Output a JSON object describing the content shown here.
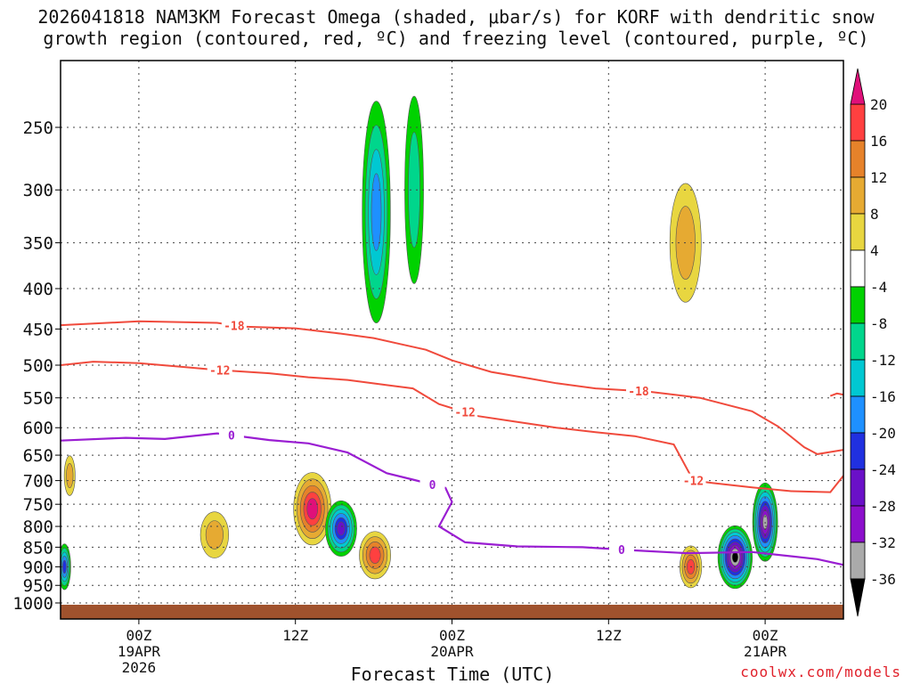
{
  "chart_data": {
    "type": "heatmap",
    "title_line1": "2026041818 NAM3KM Forecast Omega (shaded, μbar/s) for KORF with dendritic snow",
    "title_line2": "growth region (contoured, red, ºC) and freezing level (contoured, purple, ºC)",
    "xlabel": "Forecast Time (UTC)",
    "credit": "coolwx.com/models",
    "y_axis": {
      "unit": "hPa",
      "scale": "log-pressure",
      "range": [
        1000,
        215
      ],
      "ticks": [
        250,
        300,
        350,
        400,
        450,
        500,
        550,
        600,
        650,
        700,
        750,
        800,
        850,
        900,
        950,
        1000
      ]
    },
    "x_axis": {
      "unit": "forecast hours from 2026041818",
      "range": [
        0,
        60
      ],
      "ticks": [
        {
          "hour": 6,
          "label": "00Z",
          "sub1": "19APR",
          "sub2": "2026"
        },
        {
          "hour": 18,
          "label": "12Z",
          "sub1": "",
          "sub2": ""
        },
        {
          "hour": 30,
          "label": "00Z",
          "sub1": "20APR",
          "sub2": ""
        },
        {
          "hour": 42,
          "label": "12Z",
          "sub1": "",
          "sub2": ""
        },
        {
          "hour": 54,
          "label": "00Z",
          "sub1": "21APR",
          "sub2": ""
        }
      ]
    },
    "colorbar": {
      "levels": [
        -36,
        -32,
        -28,
        -24,
        -20,
        -16,
        -12,
        -8,
        -4,
        4,
        8,
        12,
        16,
        20
      ],
      "label_levels": [
        20,
        16,
        12,
        8,
        4,
        -4,
        -8,
        -12,
        -16,
        -20,
        -24,
        -28,
        -32,
        -36
      ],
      "colors": [
        "#000000",
        "#aaaaaa",
        "#8c0fcc",
        "#6a10c8",
        "#2030e0",
        "#1e90ff",
        "#00c8d2",
        "#00d68c",
        "#00d200",
        "#ffffff",
        "#e8d640",
        "#e6aa32",
        "#e6822a",
        "#ff4040",
        "#e0107a"
      ],
      "extend": "both"
    },
    "dgz_contours": {
      "color": "#f04a3c",
      "lines": [
        {
          "value": -18,
          "label": "-18",
          "points": [
            [
              0,
              445
            ],
            [
              6,
              440
            ],
            [
              12,
              442
            ],
            [
              14,
              447
            ],
            [
              18,
              449
            ],
            [
              21,
              455
            ],
            [
              24,
              462
            ],
            [
              26,
              470
            ],
            [
              28,
              478
            ],
            [
              30,
              493
            ],
            [
              33,
              510
            ],
            [
              36,
              520
            ],
            [
              38,
              527
            ],
            [
              41,
              535
            ],
            [
              45,
              540
            ],
            [
              49,
              550
            ],
            [
              53,
              572
            ],
            [
              55,
              598
            ],
            [
              57,
              635
            ],
            [
              58,
              648
            ],
            [
              60,
              640
            ]
          ],
          "label_hours": [
            13.3,
            44.3
          ]
        },
        {
          "value": -12,
          "label": "-12",
          "points": [
            [
              0,
              500
            ],
            [
              2.5,
              495
            ],
            [
              6,
              497
            ],
            [
              9,
              502
            ],
            [
              12,
              507
            ],
            [
              16,
              512
            ],
            [
              19,
              518
            ],
            [
              22,
              522
            ],
            [
              25,
              530
            ],
            [
              27,
              535
            ],
            [
              29,
              560
            ],
            [
              32,
              580
            ],
            [
              35,
              590
            ],
            [
              38,
              600
            ],
            [
              41,
              608
            ],
            [
              44,
              615
            ],
            [
              47,
              630
            ],
            [
              48.5,
              700
            ],
            [
              50,
              705
            ],
            [
              53,
              714
            ],
            [
              56,
              722
            ],
            [
              59,
              724
            ],
            [
              60,
              690
            ]
          ],
          "label_hours": [
            12.2,
            31,
            48.5
          ]
        }
      ],
      "extra_segment": {
        "points": [
          [
            59,
            547
          ],
          [
            59.5,
            543
          ],
          [
            60,
            545
          ]
        ]
      }
    },
    "freezing_level": {
      "color": "#9a1ed2",
      "label": "0",
      "points": [
        [
          0,
          623
        ],
        [
          5,
          618
        ],
        [
          8,
          620
        ],
        [
          12,
          610
        ],
        [
          16,
          622
        ],
        [
          19,
          628
        ],
        [
          22,
          645
        ],
        [
          25,
          685
        ],
        [
          27,
          698
        ],
        [
          29.5,
          715
        ],
        [
          30,
          745
        ],
        [
          29,
          800
        ],
        [
          31,
          838
        ],
        [
          35,
          848
        ],
        [
          40,
          850
        ],
        [
          44,
          858
        ],
        [
          48,
          865
        ],
        [
          53,
          862
        ],
        [
          58,
          880
        ],
        [
          60,
          895
        ]
      ],
      "label_hours": [
        13.1,
        28.5,
        43
      ]
    },
    "omega_features": [
      {
        "hour": 0.7,
        "pressure": 690,
        "dh": 0.35,
        "dp": 40,
        "value": 11
      },
      {
        "hour": 0.3,
        "pressure": 900,
        "dh": 0.4,
        "dp": 60,
        "value": -22
      },
      {
        "hour": 11.8,
        "pressure": 820,
        "dh": 0.9,
        "dp": 55,
        "value": 9
      },
      {
        "hour": 19.3,
        "pressure": 760,
        "dh": 1.2,
        "dp": 80,
        "value": 20
      },
      {
        "hour": 21.5,
        "pressure": 805,
        "dh": 1.0,
        "dp": 65,
        "value": -26
      },
      {
        "hour": 24.1,
        "pressure": 870,
        "dh": 1.0,
        "dp": 60,
        "value": 18
      },
      {
        "hour": 24.2,
        "pressure": 320,
        "dh": 0.9,
        "dp": 100,
        "value": -16
      },
      {
        "hour": 27.1,
        "pressure": 300,
        "dh": 0.6,
        "dp": 80,
        "value": -8
      },
      {
        "hour": 47.9,
        "pressure": 350,
        "dh": 1.0,
        "dp": 60,
        "value": 10
      },
      {
        "hour": 51.7,
        "pressure": 875,
        "dh": 1.1,
        "dp": 80,
        "value": -40
      },
      {
        "hour": 54.0,
        "pressure": 790,
        "dh": 0.8,
        "dp": 90,
        "value": -34
      },
      {
        "hour": 48.3,
        "pressure": 900,
        "dh": 0.7,
        "dp": 55,
        "value": 18
      }
    ],
    "terrain": {
      "surface_pressure": 1018,
      "color": "#a0522d"
    }
  }
}
